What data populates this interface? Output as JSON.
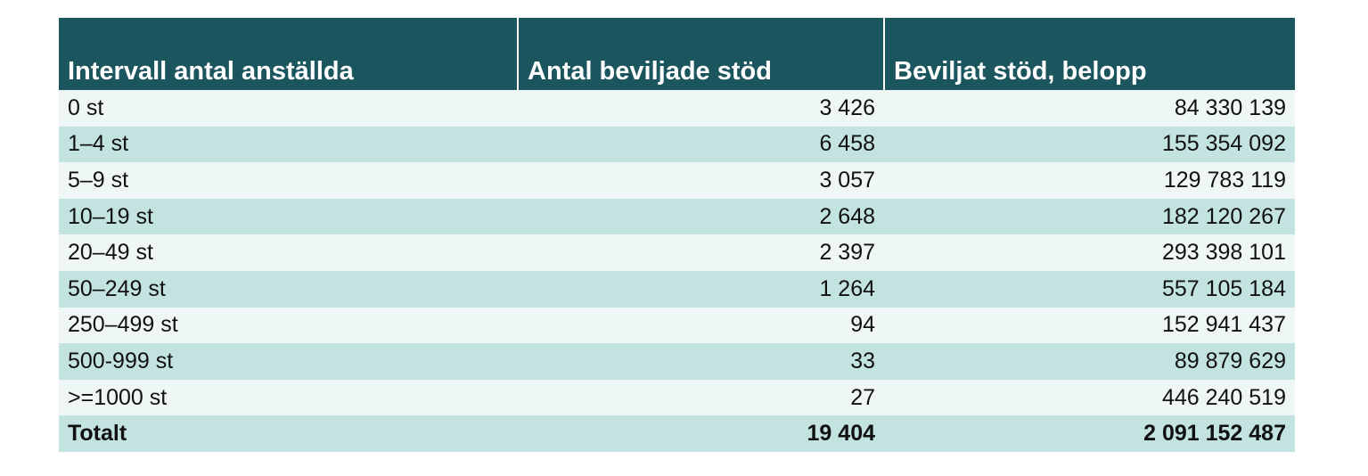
{
  "table": {
    "headers": [
      "Intervall antal anställda",
      "Antal beviljade stöd",
      "Beviljat stöd, belopp"
    ],
    "rows": [
      {
        "interval": "0 st",
        "count": "3 426",
        "amount": "84 330 139"
      },
      {
        "interval": "1–4 st",
        "count": "6 458",
        "amount": "155 354 092"
      },
      {
        "interval": "5–9 st",
        "count": "3 057",
        "amount": "129 783 119"
      },
      {
        "interval": "10–19 st",
        "count": "2 648",
        "amount": "182 120 267"
      },
      {
        "interval": "20–49 st",
        "count": "2 397",
        "amount": "293 398 101"
      },
      {
        "interval": "50–249 st",
        "count": "1 264",
        "amount": "557 105 184"
      },
      {
        "interval": "250–499 st",
        "count": "94",
        "amount": "152 941 437"
      },
      {
        "interval": "500-999 st",
        "count": "33",
        "amount": "89 879 629"
      },
      {
        "interval": ">=1000 st",
        "count": "27",
        "amount": "446 240 519"
      }
    ],
    "total": {
      "label": "Totalt",
      "count": "19 404",
      "amount": "2 091 152 487"
    }
  },
  "colors": {
    "header_bg": "#1b555e",
    "row_light": "#eef7f6",
    "row_dark": "#c2e3e0"
  }
}
